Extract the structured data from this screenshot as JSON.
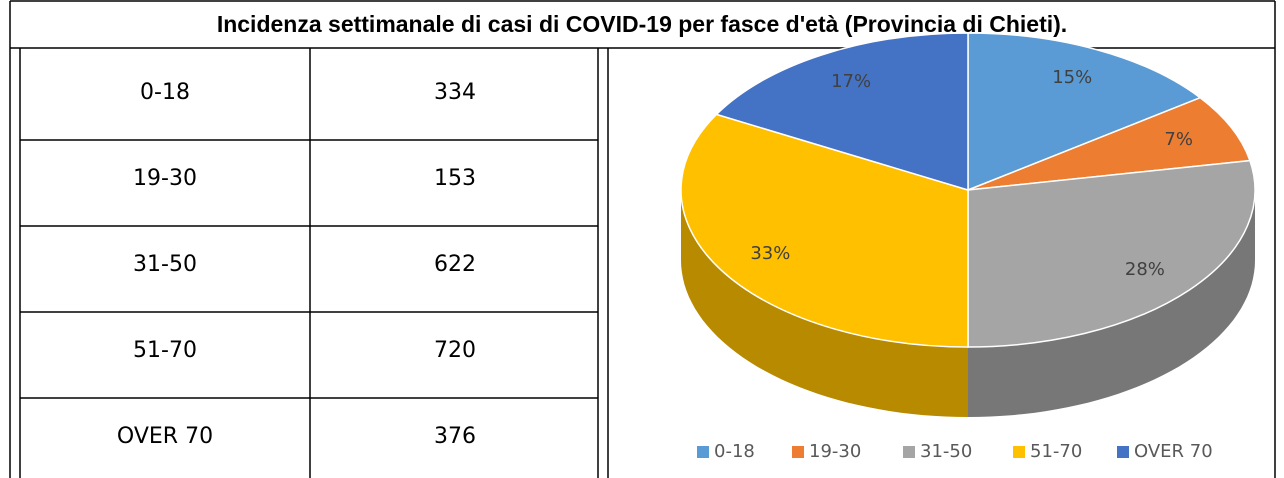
{
  "title": "Incidenza settimanale di casi di COVID-19 per fasce d'età (Provincia di Chieti).",
  "table": {
    "rows": [
      [
        "0-18",
        334
      ],
      [
        "19-30",
        153
      ],
      [
        "31-50",
        622
      ],
      [
        "51-70",
        720
      ],
      [
        "OVER 70",
        376
      ]
    ]
  },
  "chart_data": {
    "type": "pie",
    "categories": [
      "0-18",
      "19-30",
      "31-50",
      "51-70",
      "OVER 70"
    ],
    "values": [
      15,
      7,
      28,
      33,
      17
    ],
    "value_labels": [
      "15%",
      "7%",
      "28%",
      "33%",
      "17%"
    ],
    "colors": [
      "#5b9bd5",
      "#ed7d31",
      "#a5a5a5",
      "#ffc000",
      "#4472c4"
    ],
    "legend": "bottom"
  }
}
